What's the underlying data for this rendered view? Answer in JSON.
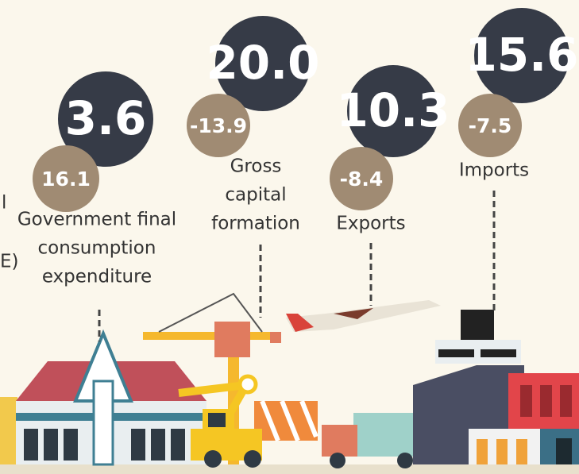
{
  "edge_texts": [
    "l",
    "E)"
  ],
  "items": [
    {
      "main": "3.6",
      "change": "16.1",
      "label": [
        "Government final",
        "consumption",
        "expenditure"
      ]
    },
    {
      "main": "20.0",
      "change": "-13.9",
      "label": [
        "Gross",
        "capital",
        "formation"
      ]
    },
    {
      "main": "10.3",
      "change": "-8.4",
      "label": [
        "Exports"
      ]
    },
    {
      "main": "15.6",
      "change": "-7.5",
      "label": [
        "Imports"
      ]
    }
  ]
}
